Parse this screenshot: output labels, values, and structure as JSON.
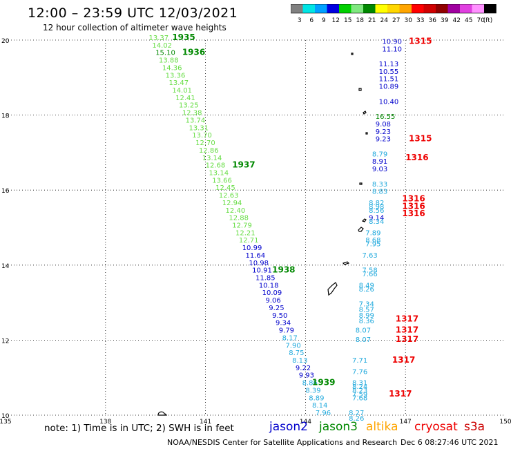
{
  "header": {
    "title": "12:00 – 23:59 UTC 12/03/2021",
    "subtitle": "12 hour collection of altimeter wave heights"
  },
  "color_scale": {
    "unit": "(ft)",
    "bins": [
      {
        "label": "3",
        "color": "#808080"
      },
      {
        "label": "6",
        "color": "#00e5e5"
      },
      {
        "label": "9",
        "color": "#00a0ff"
      },
      {
        "label": "12",
        "color": "#0000e0"
      },
      {
        "label": "15",
        "color": "#00d000"
      },
      {
        "label": "18",
        "color": "#7fe87f"
      },
      {
        "label": "21",
        "color": "#008800"
      },
      {
        "label": "24",
        "color": "#ffff00"
      },
      {
        "label": "27",
        "color": "#ffd700"
      },
      {
        "label": "30",
        "color": "#ffa500"
      },
      {
        "label": "33",
        "color": "#ff0000"
      },
      {
        "label": "36",
        "color": "#d00000"
      },
      {
        "label": "39",
        "color": "#900000"
      },
      {
        "label": "42",
        "color": "#a000a0"
      },
      {
        "label": "45",
        "color": "#e040e0"
      },
      {
        "label": "70",
        "color": "#ff90ff"
      },
      {
        "label": "",
        "color": "#000000"
      }
    ]
  },
  "map": {
    "lon_ticks": [
      "135",
      "138",
      "141",
      "144",
      "147",
      "150"
    ],
    "lat_ticks": [
      "10",
      "12",
      "14",
      "16",
      "18",
      "20"
    ],
    "land_color": "#000000"
  },
  "observations": [
    {
      "lon": 139.3,
      "lat": 20.0,
      "text": "13.37",
      "color": "#66dd44"
    },
    {
      "lon": 139.4,
      "lat": 19.8,
      "text": "14.02",
      "color": "#66dd44"
    },
    {
      "lon": 139.5,
      "lat": 19.6,
      "text": "15.10",
      "color": "#008800"
    },
    {
      "lon": 139.6,
      "lat": 19.4,
      "text": "13.88",
      "color": "#66dd44"
    },
    {
      "lon": 139.7,
      "lat": 19.2,
      "text": "14.36",
      "color": "#66dd44"
    },
    {
      "lon": 139.8,
      "lat": 19.0,
      "text": "13.36",
      "color": "#66dd44"
    },
    {
      "lon": 139.9,
      "lat": 18.8,
      "text": "13.47",
      "color": "#66dd44"
    },
    {
      "lon": 140.0,
      "lat": 18.6,
      "text": "14.01",
      "color": "#66dd44"
    },
    {
      "lon": 140.1,
      "lat": 18.4,
      "text": "12.41",
      "color": "#66dd44"
    },
    {
      "lon": 140.2,
      "lat": 18.2,
      "text": "13.25",
      "color": "#66dd44"
    },
    {
      "lon": 140.3,
      "lat": 18.0,
      "text": "12.38",
      "color": "#66dd44"
    },
    {
      "lon": 140.4,
      "lat": 17.8,
      "text": "13.74",
      "color": "#66dd44"
    },
    {
      "lon": 140.5,
      "lat": 17.6,
      "text": "13.31",
      "color": "#66dd44"
    },
    {
      "lon": 140.6,
      "lat": 17.4,
      "text": "13.70",
      "color": "#66dd44"
    },
    {
      "lon": 140.7,
      "lat": 17.2,
      "text": "12.70",
      "color": "#66dd44"
    },
    {
      "lon": 140.8,
      "lat": 17.0,
      "text": "12.86",
      "color": "#66dd44"
    },
    {
      "lon": 140.9,
      "lat": 16.8,
      "text": "13.14",
      "color": "#66dd44"
    },
    {
      "lon": 141.0,
      "lat": 16.6,
      "text": "12.68",
      "color": "#66dd44"
    },
    {
      "lon": 141.1,
      "lat": 16.4,
      "text": "13.14",
      "color": "#66dd44"
    },
    {
      "lon": 141.2,
      "lat": 16.2,
      "text": "13.66",
      "color": "#66dd44"
    },
    {
      "lon": 141.3,
      "lat": 16.0,
      "text": "12.45",
      "color": "#66dd44"
    },
    {
      "lon": 141.4,
      "lat": 15.8,
      "text": "12.63",
      "color": "#66dd44"
    },
    {
      "lon": 141.5,
      "lat": 15.6,
      "text": "12.94",
      "color": "#66dd44"
    },
    {
      "lon": 141.6,
      "lat": 15.4,
      "text": "12.40",
      "color": "#66dd44"
    },
    {
      "lon": 141.7,
      "lat": 15.2,
      "text": "12.88",
      "color": "#66dd44"
    },
    {
      "lon": 141.8,
      "lat": 15.0,
      "text": "12.79",
      "color": "#66dd44"
    },
    {
      "lon": 141.9,
      "lat": 14.8,
      "text": "12.21",
      "color": "#66dd44"
    },
    {
      "lon": 142.0,
      "lat": 14.6,
      "text": "12.71",
      "color": "#66dd44"
    },
    {
      "lon": 142.1,
      "lat": 14.4,
      "text": "10.99",
      "color": "#0000cc"
    },
    {
      "lon": 142.2,
      "lat": 14.2,
      "text": "11.64",
      "color": "#0000cc"
    },
    {
      "lon": 142.3,
      "lat": 14.0,
      "text": "10.98",
      "color": "#0000cc"
    },
    {
      "lon": 142.4,
      "lat": 13.8,
      "text": "10.91",
      "color": "#0000cc"
    },
    {
      "lon": 142.5,
      "lat": 13.6,
      "text": "11.85",
      "color": "#0000cc"
    },
    {
      "lon": 142.6,
      "lat": 13.4,
      "text": "10.18",
      "color": "#0000cc"
    },
    {
      "lon": 142.7,
      "lat": 13.2,
      "text": "10.09",
      "color": "#0000cc"
    },
    {
      "lon": 142.8,
      "lat": 13.0,
      "text": "9.06",
      "color": "#0000cc"
    },
    {
      "lon": 142.9,
      "lat": 12.8,
      "text": "9.25",
      "color": "#0000cc"
    },
    {
      "lon": 143.0,
      "lat": 12.6,
      "text": "9.50",
      "color": "#0000cc"
    },
    {
      "lon": 143.1,
      "lat": 12.4,
      "text": "9.34",
      "color": "#0000cc"
    },
    {
      "lon": 143.2,
      "lat": 12.2,
      "text": "9.79",
      "color": "#0000cc"
    },
    {
      "lon": 143.3,
      "lat": 12.0,
      "text": "8.17",
      "color": "#22aadd"
    },
    {
      "lon": 143.4,
      "lat": 11.8,
      "text": "7.90",
      "color": "#22aadd"
    },
    {
      "lon": 143.5,
      "lat": 11.6,
      "text": "8.75",
      "color": "#22aadd"
    },
    {
      "lon": 143.6,
      "lat": 11.4,
      "text": "8.13",
      "color": "#22aadd"
    },
    {
      "lon": 143.7,
      "lat": 11.2,
      "text": "9.22",
      "color": "#0000cc"
    },
    {
      "lon": 143.8,
      "lat": 11.0,
      "text": "9.93",
      "color": "#0000cc"
    },
    {
      "lon": 143.9,
      "lat": 10.8,
      "text": "8.86",
      "color": "#22aadd"
    },
    {
      "lon": 144.0,
      "lat": 10.6,
      "text": "8.39",
      "color": "#22aadd"
    },
    {
      "lon": 144.1,
      "lat": 10.4,
      "text": "8.89",
      "color": "#22aadd"
    },
    {
      "lon": 144.2,
      "lat": 10.2,
      "text": "8.14",
      "color": "#22aadd"
    },
    {
      "lon": 144.3,
      "lat": 10.0,
      "text": "7.96",
      "color": "#22aadd"
    },
    {
      "lon": 146.3,
      "lat": 19.9,
      "text": "10.90",
      "color": "#0000cc"
    },
    {
      "lon": 146.3,
      "lat": 19.7,
      "text": "11.10",
      "color": "#0000cc"
    },
    {
      "lon": 146.2,
      "lat": 19.3,
      "text": "11.13",
      "color": "#0000cc"
    },
    {
      "lon": 146.2,
      "lat": 19.1,
      "text": "10.55",
      "color": "#0000cc"
    },
    {
      "lon": 146.2,
      "lat": 18.9,
      "text": "11.51",
      "color": "#0000cc"
    },
    {
      "lon": 146.2,
      "lat": 18.7,
      "text": "10.89",
      "color": "#0000cc"
    },
    {
      "lon": 146.2,
      "lat": 18.3,
      "text": "10.40",
      "color": "#0000cc"
    },
    {
      "lon": 146.1,
      "lat": 17.9,
      "text": "16.55",
      "color": "#008800"
    },
    {
      "lon": 146.1,
      "lat": 17.7,
      "text": "9.08",
      "color": "#0000cc"
    },
    {
      "lon": 146.1,
      "lat": 17.5,
      "text": "9.23",
      "color": "#0000cc"
    },
    {
      "lon": 146.1,
      "lat": 17.3,
      "text": "9.23",
      "color": "#0000cc"
    },
    {
      "lon": 146.0,
      "lat": 16.9,
      "text": "8.79",
      "color": "#22aadd"
    },
    {
      "lon": 146.0,
      "lat": 16.7,
      "text": "8.91",
      "color": "#0000cc"
    },
    {
      "lon": 146.0,
      "lat": 16.5,
      "text": "9.03",
      "color": "#0000cc"
    },
    {
      "lon": 146.0,
      "lat": 16.1,
      "text": "8.33",
      "color": "#22aadd"
    },
    {
      "lon": 146.0,
      "lat": 15.9,
      "text": "8.83",
      "color": "#22aadd"
    },
    {
      "lon": 145.9,
      "lat": 15.6,
      "text": "8.82",
      "color": "#22aadd"
    },
    {
      "lon": 145.9,
      "lat": 15.5,
      "text": "8.98",
      "color": "#22aadd"
    },
    {
      "lon": 145.9,
      "lat": 15.4,
      "text": "8.56",
      "color": "#22aadd"
    },
    {
      "lon": 145.9,
      "lat": 15.2,
      "text": "9.14",
      "color": "#0000cc"
    },
    {
      "lon": 145.9,
      "lat": 15.1,
      "text": "8.34",
      "color": "#22aadd"
    },
    {
      "lon": 145.8,
      "lat": 14.8,
      "text": "7.89",
      "color": "#22aadd"
    },
    {
      "lon": 145.8,
      "lat": 14.6,
      "text": "8.68",
      "color": "#22aadd"
    },
    {
      "lon": 145.8,
      "lat": 14.5,
      "text": "7.95",
      "color": "#22aadd"
    },
    {
      "lon": 145.7,
      "lat": 14.2,
      "text": "7.63",
      "color": "#22aadd"
    },
    {
      "lon": 145.7,
      "lat": 13.8,
      "text": "7.58",
      "color": "#22aadd"
    },
    {
      "lon": 145.7,
      "lat": 13.7,
      "text": "7.66",
      "color": "#22aadd"
    },
    {
      "lon": 145.6,
      "lat": 13.4,
      "text": "8.49",
      "color": "#22aadd"
    },
    {
      "lon": 145.6,
      "lat": 13.3,
      "text": "8.26",
      "color": "#22aadd"
    },
    {
      "lon": 145.6,
      "lat": 12.9,
      "text": "7.34",
      "color": "#22aadd"
    },
    {
      "lon": 145.6,
      "lat": 12.75,
      "text": "8.57",
      "color": "#22aadd"
    },
    {
      "lon": 145.6,
      "lat": 12.6,
      "text": "8.99",
      "color": "#22aadd"
    },
    {
      "lon": 145.6,
      "lat": 12.45,
      "text": "8.36",
      "color": "#22aadd"
    },
    {
      "lon": 145.5,
      "lat": 12.2,
      "text": "8.07",
      "color": "#22aadd"
    },
    {
      "lon": 145.5,
      "lat": 11.95,
      "text": "8.07",
      "color": "#22aadd"
    },
    {
      "lon": 145.4,
      "lat": 11.4,
      "text": "7.71",
      "color": "#22aadd"
    },
    {
      "lon": 145.4,
      "lat": 11.1,
      "text": "7.76",
      "color": "#22aadd"
    },
    {
      "lon": 145.4,
      "lat": 10.8,
      "text": "8.31",
      "color": "#22aadd"
    },
    {
      "lon": 145.4,
      "lat": 10.7,
      "text": "8.24",
      "color": "#22aadd"
    },
    {
      "lon": 145.4,
      "lat": 10.6,
      "text": "8.23",
      "color": "#22aadd"
    },
    {
      "lon": 145.4,
      "lat": 10.5,
      "text": "7.59",
      "color": "#22aadd"
    },
    {
      "lon": 145.4,
      "lat": 10.4,
      "text": "7.68",
      "color": "#22aadd"
    },
    {
      "lon": 145.3,
      "lat": 10.0,
      "text": "8.27",
      "color": "#22aadd"
    },
    {
      "lon": 145.3,
      "lat": 9.85,
      "text": "8.26",
      "color": "#22aadd"
    }
  ],
  "pass_times": [
    {
      "lon": 140.0,
      "lat": 20.0,
      "text": "1935",
      "color": "#008800"
    },
    {
      "lon": 140.3,
      "lat": 19.6,
      "text": "1936",
      "color": "#008800"
    },
    {
      "lon": 141.8,
      "lat": 16.6,
      "text": "1937",
      "color": "#008800"
    },
    {
      "lon": 143.0,
      "lat": 13.8,
      "text": "1938",
      "color": "#008800"
    },
    {
      "lon": 144.2,
      "lat": 10.8,
      "text": "1939",
      "color": "#008800"
    },
    {
      "lon": 147.1,
      "lat": 19.9,
      "text": "1315",
      "color": "#ee0000"
    },
    {
      "lon": 147.1,
      "lat": 17.3,
      "text": "1315",
      "color": "#ee0000"
    },
    {
      "lon": 147.0,
      "lat": 16.8,
      "text": "1316",
      "color": "#ee0000"
    },
    {
      "lon": 146.9,
      "lat": 15.7,
      "text": "1316",
      "color": "#ee0000"
    },
    {
      "lon": 146.9,
      "lat": 15.5,
      "text": "1316",
      "color": "#ee0000"
    },
    {
      "lon": 146.9,
      "lat": 15.3,
      "text": "1316",
      "color": "#ee0000"
    },
    {
      "lon": 146.7,
      "lat": 12.5,
      "text": "1317",
      "color": "#ee0000"
    },
    {
      "lon": 146.7,
      "lat": 12.2,
      "text": "1317",
      "color": "#ee0000"
    },
    {
      "lon": 146.7,
      "lat": 11.95,
      "text": "1317",
      "color": "#ee0000"
    },
    {
      "lon": 146.6,
      "lat": 11.4,
      "text": "1317",
      "color": "#ee0000"
    },
    {
      "lon": 146.5,
      "lat": 10.5,
      "text": "1317",
      "color": "#ee0000"
    }
  ],
  "footer": {
    "note": "note: 1) Time is in UTC; 2) SWH is in feet",
    "credit": "NOAA/NESDIS Center for Satellite Applications and Research",
    "timestamp": "Dec  6 08:27:46 UTC 2021",
    "satellites": [
      {
        "name": "jason2",
        "color": "#0000cc"
      },
      {
        "name": "jason3",
        "color": "#008800"
      },
      {
        "name": "altika",
        "color": "#ffa500"
      },
      {
        "name": "cryosat",
        "color": "#ee0000"
      },
      {
        "name": "s3a",
        "color": "#cc0000"
      }
    ]
  }
}
